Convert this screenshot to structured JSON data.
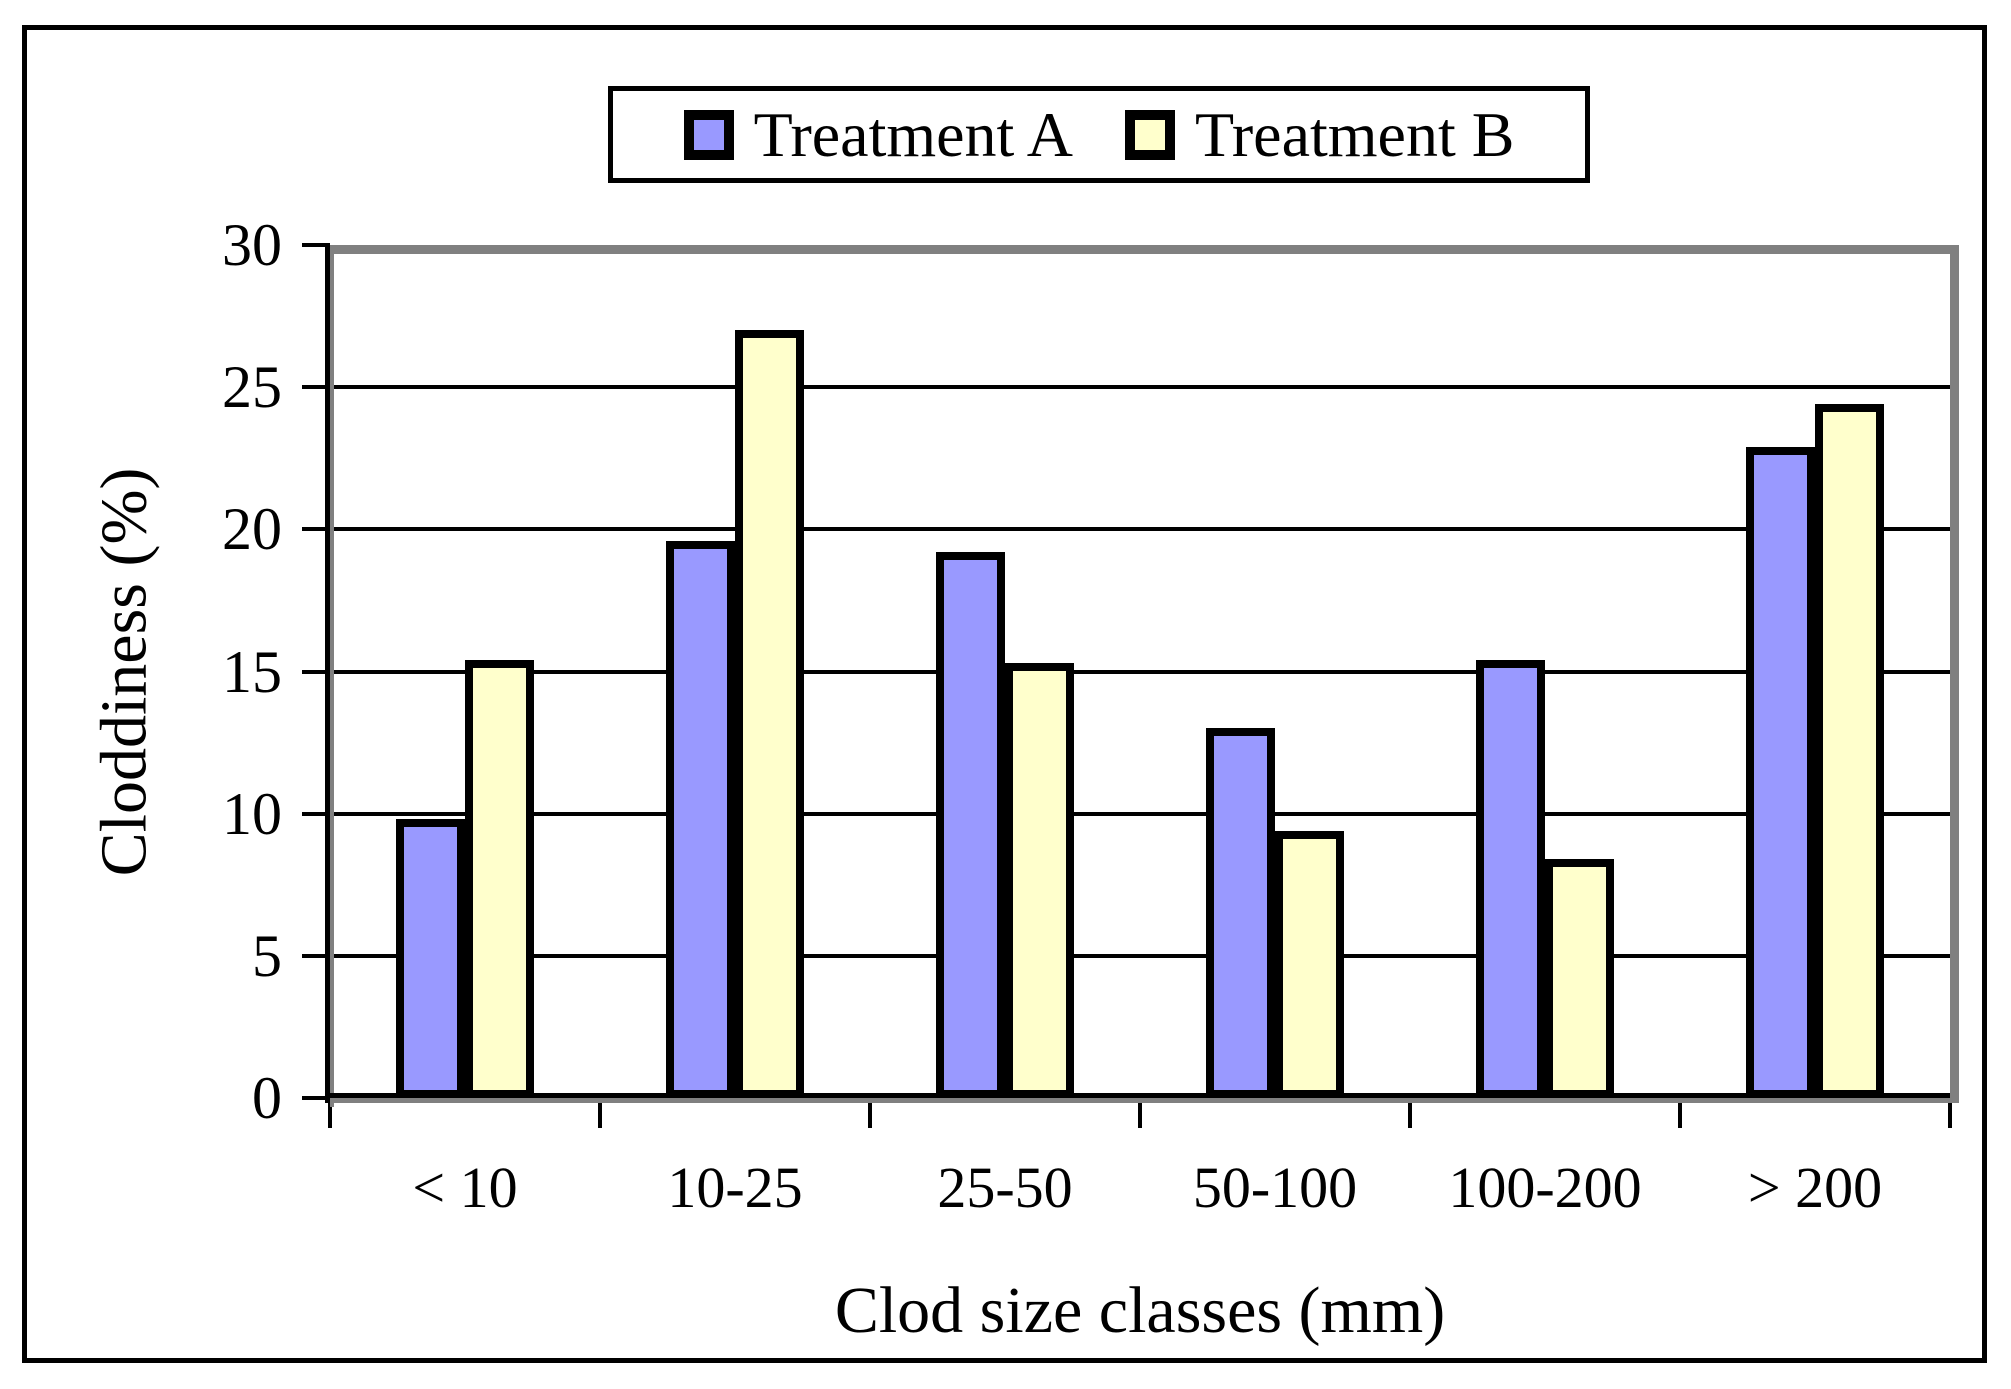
{
  "chart_data": {
    "type": "bar",
    "title": "",
    "categories": [
      "< 10",
      "10-25",
      "25-50",
      "50-100",
      "100-200",
      "> 200"
    ],
    "series": [
      {
        "name": "Treatment A",
        "color": "#9999FF",
        "values": [
          9.8,
          19.6,
          19.2,
          13.0,
          15.4,
          22.9
        ]
      },
      {
        "name": "Treatment B",
        "color": "#FFFFCC",
        "values": [
          15.4,
          27.0,
          15.3,
          9.4,
          8.4,
          24.4
        ]
      }
    ],
    "xlabel": "Clod size classes (mm)",
    "ylabel": "Cloddiness (%)",
    "ylim": [
      0,
      30
    ],
    "yticks": [
      0,
      5,
      10,
      15,
      20,
      25,
      30
    ],
    "grid": true,
    "legend_position": "top-center",
    "colors": {
      "bar_outline": "#000000",
      "gridline": "#000000",
      "plot_shadow": "#808080",
      "background": "#FFFFFF"
    }
  }
}
